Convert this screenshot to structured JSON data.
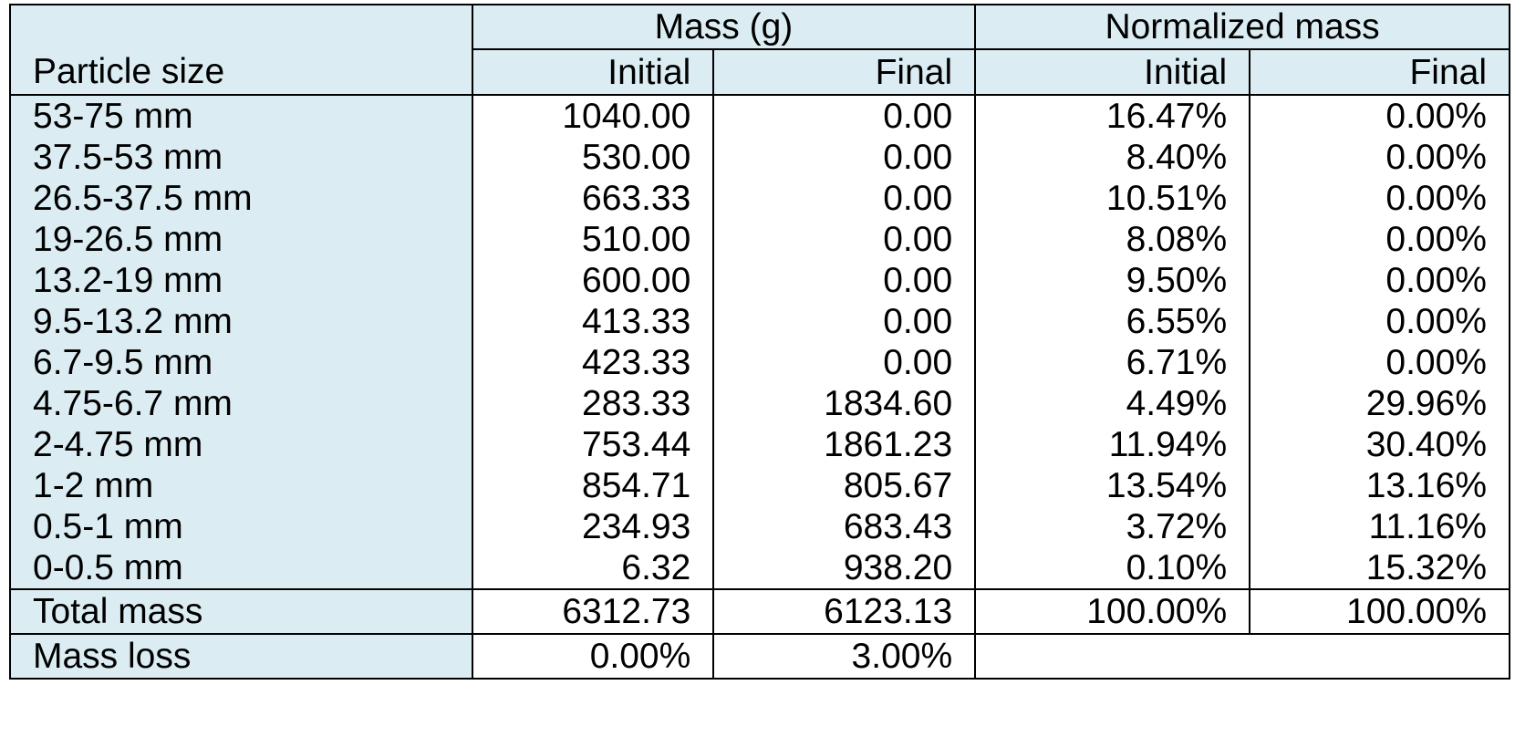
{
  "header": {
    "particle_size": "Particle size",
    "mass_group": "Mass (g)",
    "normalized_group": "Normalized mass",
    "initial": "Initial",
    "final": "Final"
  },
  "rows": [
    {
      "size": "53-75 mm",
      "mass_initial": "1040.00",
      "mass_final": "0.00",
      "norm_initial": "16.47%",
      "norm_final": "0.00%"
    },
    {
      "size": "37.5-53 mm",
      "mass_initial": "530.00",
      "mass_final": "0.00",
      "norm_initial": "8.40%",
      "norm_final": "0.00%"
    },
    {
      "size": "26.5-37.5 mm",
      "mass_initial": "663.33",
      "mass_final": "0.00",
      "norm_initial": "10.51%",
      "norm_final": "0.00%"
    },
    {
      "size": "19-26.5 mm",
      "mass_initial": "510.00",
      "mass_final": "0.00",
      "norm_initial": "8.08%",
      "norm_final": "0.00%"
    },
    {
      "size": "13.2-19 mm",
      "mass_initial": "600.00",
      "mass_final": "0.00",
      "norm_initial": "9.50%",
      "norm_final": "0.00%"
    },
    {
      "size": "9.5-13.2 mm",
      "mass_initial": "413.33",
      "mass_final": "0.00",
      "norm_initial": "6.55%",
      "norm_final": "0.00%"
    },
    {
      "size": "6.7-9.5 mm",
      "mass_initial": "423.33",
      "mass_final": "0.00",
      "norm_initial": "6.71%",
      "norm_final": "0.00%"
    },
    {
      "size": "4.75-6.7 mm",
      "mass_initial": "283.33",
      "mass_final": "1834.60",
      "norm_initial": "4.49%",
      "norm_final": "29.96%"
    },
    {
      "size": "2-4.75 mm",
      "mass_initial": "753.44",
      "mass_final": "1861.23",
      "norm_initial": "11.94%",
      "norm_final": "30.40%"
    },
    {
      "size": "1-2 mm",
      "mass_initial": "854.71",
      "mass_final": "805.67",
      "norm_initial": "13.54%",
      "norm_final": "13.16%"
    },
    {
      "size": "0.5-1 mm",
      "mass_initial": "234.93",
      "mass_final": "683.43",
      "norm_initial": "3.72%",
      "norm_final": "11.16%"
    },
    {
      "size": "0-0.5 mm",
      "mass_initial": "6.32",
      "mass_final": "938.20",
      "norm_initial": "0.10%",
      "norm_final": "15.32%"
    }
  ],
  "total": {
    "label": "Total mass",
    "mass_initial": "6312.73",
    "mass_final": "6123.13",
    "norm_initial": "100.00%",
    "norm_final": "100.00%"
  },
  "loss": {
    "label": "Mass loss",
    "mass_initial": "0.00%",
    "mass_final": "3.00%"
  },
  "colors": {
    "header_background": "#dbedf3",
    "border": "#000000"
  }
}
